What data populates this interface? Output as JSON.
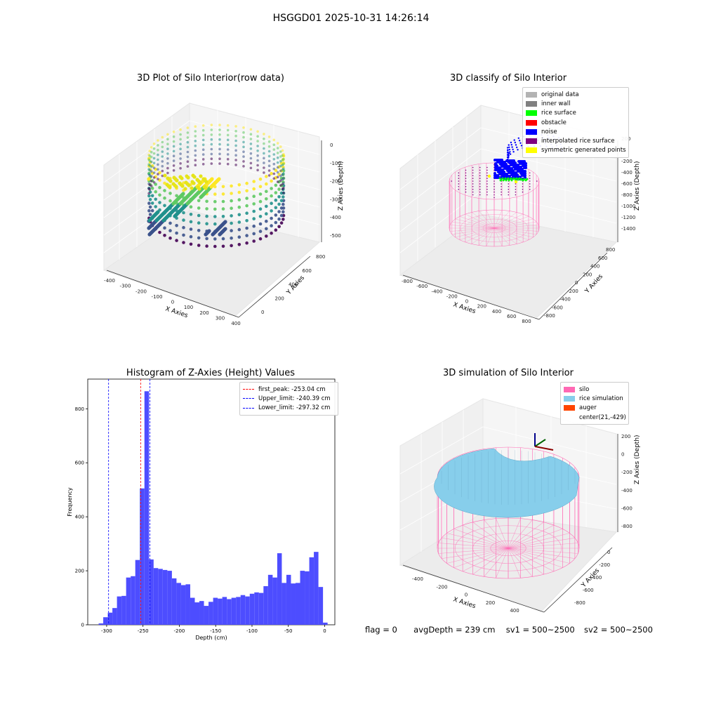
{
  "figure": {
    "suptitle": "HSGGD01 2025-10-31 14:26:14",
    "footer": {
      "flag": "flag = 0",
      "avg_depth": "avgDepth = 239 cm",
      "sv1": "sv1 = 500~2500",
      "sv2": "sv2 = 500~2500"
    }
  },
  "chart_data": [
    {
      "type": "scatter",
      "title": "3D Plot of Silo Interior(row data)",
      "xlabel": "X Axies",
      "ylabel": "Y Axies",
      "zlabel": "Z Axies (Depth)",
      "x_ticks": [
        -400,
        -300,
        -200,
        -100,
        0,
        100,
        200,
        300,
        400
      ],
      "y_ticks": [
        0,
        200,
        400,
        600,
        800
      ],
      "z_ticks": [
        0,
        -100,
        -200,
        -300,
        -400,
        -500
      ],
      "colormap": "viridis",
      "colors": {
        "low": "#440154",
        "mid": "#21918c",
        "high": "#fde725"
      }
    },
    {
      "type": "scatter",
      "title": "3D classify of Silo Interior",
      "xlabel": "X Axies",
      "ylabel": "Y Axies",
      "zlabel": "Z Axies (Depth)",
      "x_ticks": [
        -800,
        -600,
        -400,
        -200,
        0,
        200,
        400,
        600,
        800
      ],
      "y_ticks": [
        -800,
        -600,
        -400,
        -200,
        0,
        200,
        400,
        600,
        800
      ],
      "z_ticks": [
        -1400,
        -1200,
        -1000,
        -800,
        -600,
        -400,
        -200,
        0,
        200
      ],
      "legend": [
        {
          "label": "original data",
          "color": "#b3b3b3"
        },
        {
          "label": "inner wall",
          "color": "#808080"
        },
        {
          "label": "rice surface",
          "color": "#00ff00"
        },
        {
          "label": "obstacle",
          "color": "#ff0000"
        },
        {
          "label": "noise",
          "color": "#0000ff"
        },
        {
          "label": "interpolated rice surface",
          "color": "#800080"
        },
        {
          "label": "symmetric generated points",
          "color": "#ffff00"
        }
      ],
      "wireframe_color": "#ff69b4"
    },
    {
      "type": "bar",
      "title": "Histogram of Z-Axies (Height) Values",
      "xlabel": "Depth (cm)",
      "ylabel": "Frequency",
      "xlim": [
        -326,
        14
      ],
      "ylim": [
        0,
        910
      ],
      "x_ticks": [
        -300,
        -250,
        -200,
        -150,
        -100,
        -50,
        0
      ],
      "y_ticks": [
        0,
        200,
        400,
        600,
        800
      ],
      "bin_start": -311,
      "bin_width": 6.3,
      "values": [
        5,
        28,
        45,
        62,
        105,
        107,
        175,
        180,
        240,
        505,
        865,
        242,
        210,
        207,
        203,
        200,
        172,
        155,
        147,
        150,
        100,
        83,
        88,
        70,
        85,
        100,
        97,
        103,
        95,
        100,
        103,
        110,
        105,
        115,
        120,
        118,
        143,
        185,
        175,
        265,
        155,
        185,
        153,
        155,
        200,
        198,
        250,
        270,
        140,
        8
      ],
      "bar_color": "#4d4dff",
      "vlines": [
        {
          "label": "first_peak: -253.04 cm",
          "x": -253.04,
          "color": "#ff0000"
        },
        {
          "label": "Upper_limit: -240.39 cm",
          "x": -240.39,
          "color": "#0000ff"
        },
        {
          "label": "Lower_limit: -297.32 cm",
          "x": -297.32,
          "color": "#0000ff"
        }
      ],
      "legend_position": "top-right"
    },
    {
      "type": "surface",
      "title": "3D simulation of Silo Interior",
      "xlabel": "X Axies",
      "ylabel": "Y Axies",
      "zlabel": "Z Axies (Depth)",
      "x_ticks": [
        -400,
        -200,
        0,
        200,
        400
      ],
      "y_ticks": [
        -800,
        -600,
        -400,
        -200,
        0
      ],
      "z_ticks": [
        -800,
        -600,
        -400,
        -200,
        0,
        200
      ],
      "legend": [
        {
          "label": "silo",
          "color": "#ff69b4"
        },
        {
          "label": "rice simulation",
          "color": "#87ceeb"
        },
        {
          "label": "auger",
          "color": "#ff4500"
        },
        {
          "label": "center(21,-429)",
          "color": ""
        }
      ]
    }
  ]
}
